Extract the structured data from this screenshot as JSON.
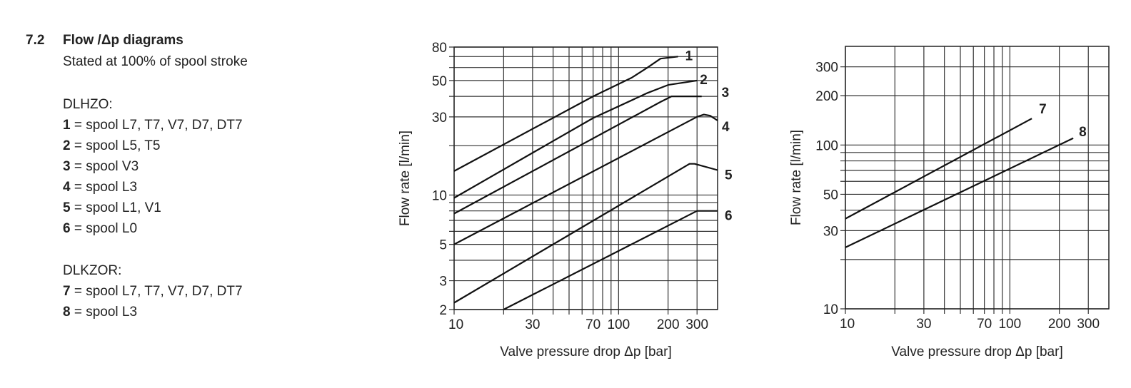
{
  "section": {
    "number": "7.2",
    "title": "Flow /Δp diagrams",
    "subtitle": "Stated at 100% of spool stroke",
    "groups": [
      {
        "name": "DLHZO:",
        "items": [
          {
            "num": "1",
            "text": " = spool L7, T7, V7, D7, DT7"
          },
          {
            "num": "2",
            "text": " = spool L5, T5"
          },
          {
            "num": "3",
            "text": " = spool V3"
          },
          {
            "num": "4",
            "text": " = spool L3"
          },
          {
            "num": "5",
            "text": " = spool L1, V1"
          },
          {
            "num": "6",
            "text": " = spool L0"
          }
        ]
      },
      {
        "name": "DLKZOR:",
        "items": [
          {
            "num": "7",
            "text": " = spool L7, T7, V7, D7, DT7"
          },
          {
            "num": "8",
            "text": " = spool L3"
          }
        ]
      }
    ]
  },
  "chart_data": [
    {
      "type": "line",
      "xscale": "log",
      "yscale": "log",
      "xlabel": "Valve pressure drop Δp [bar]",
      "ylabel": "Flow rate [l/min]",
      "xlim": [
        10,
        400
      ],
      "ylim": [
        2,
        80
      ],
      "xticks": [
        10,
        30,
        70,
        100,
        200,
        300
      ],
      "yticks": [
        2,
        3,
        5,
        10,
        30,
        50,
        80
      ],
      "xgrid": [
        10,
        20,
        30,
        40,
        50,
        60,
        70,
        80,
        90,
        100,
        200,
        300
      ],
      "ygrid": [
        2,
        3,
        4,
        5,
        6,
        7,
        8,
        9,
        10,
        20,
        30,
        40,
        50,
        60,
        70,
        80
      ],
      "grid": true,
      "series": [
        {
          "name": "1",
          "points": [
            [
              10,
              14
            ],
            [
              70,
              40
            ],
            [
              120,
              52
            ],
            [
              150,
              60
            ],
            [
              180,
              68
            ],
            [
              230,
              70
            ]
          ]
        },
        {
          "name": "2",
          "points": [
            [
              10,
              9.6
            ],
            [
              70,
              29.5
            ],
            [
              150,
              42
            ],
            [
              200,
              47
            ],
            [
              300,
              50
            ]
          ]
        },
        {
          "name": "3",
          "points": [
            [
              10,
              7.7
            ],
            [
              180,
              37
            ],
            [
              210,
              40
            ],
            [
              320,
              40
            ]
          ]
        },
        {
          "name": "4",
          "points": [
            [
              10,
              5
            ],
            [
              300,
              30
            ],
            [
              330,
              31
            ],
            [
              360,
              30.5
            ],
            [
              400,
              28.5
            ]
          ]
        },
        {
          "name": "5",
          "points": [
            [
              10,
              2.2
            ],
            [
              270,
              15.5
            ],
            [
              290,
              15.5
            ],
            [
              400,
              14.2
            ]
          ]
        },
        {
          "name": "6",
          "points": [
            [
              20,
              2
            ],
            [
              300,
              8
            ],
            [
              400,
              8
            ]
          ]
        }
      ]
    },
    {
      "type": "line",
      "xscale": "log",
      "yscale": "log",
      "xlabel": "Valve pressure drop Δp [bar]",
      "ylabel": "Flow rate [l/min]",
      "xlim": [
        10,
        400
      ],
      "ylim": [
        10,
        400
      ],
      "xticks": [
        10,
        30,
        70,
        100,
        200,
        300
      ],
      "yticks": [
        10,
        30,
        50,
        100,
        200,
        300
      ],
      "xgrid": [
        10,
        20,
        30,
        40,
        50,
        60,
        70,
        80,
        90,
        100,
        200,
        300
      ],
      "ygrid": [
        10,
        20,
        30,
        40,
        50,
        60,
        70,
        80,
        90,
        100,
        200,
        300
      ],
      "grid": true,
      "series": [
        {
          "name": "7",
          "points": [
            [
              10,
              35.5
            ],
            [
              136,
              145
            ]
          ]
        },
        {
          "name": "8",
          "points": [
            [
              10,
              23.7
            ],
            [
              243,
              110
            ]
          ]
        }
      ]
    }
  ]
}
